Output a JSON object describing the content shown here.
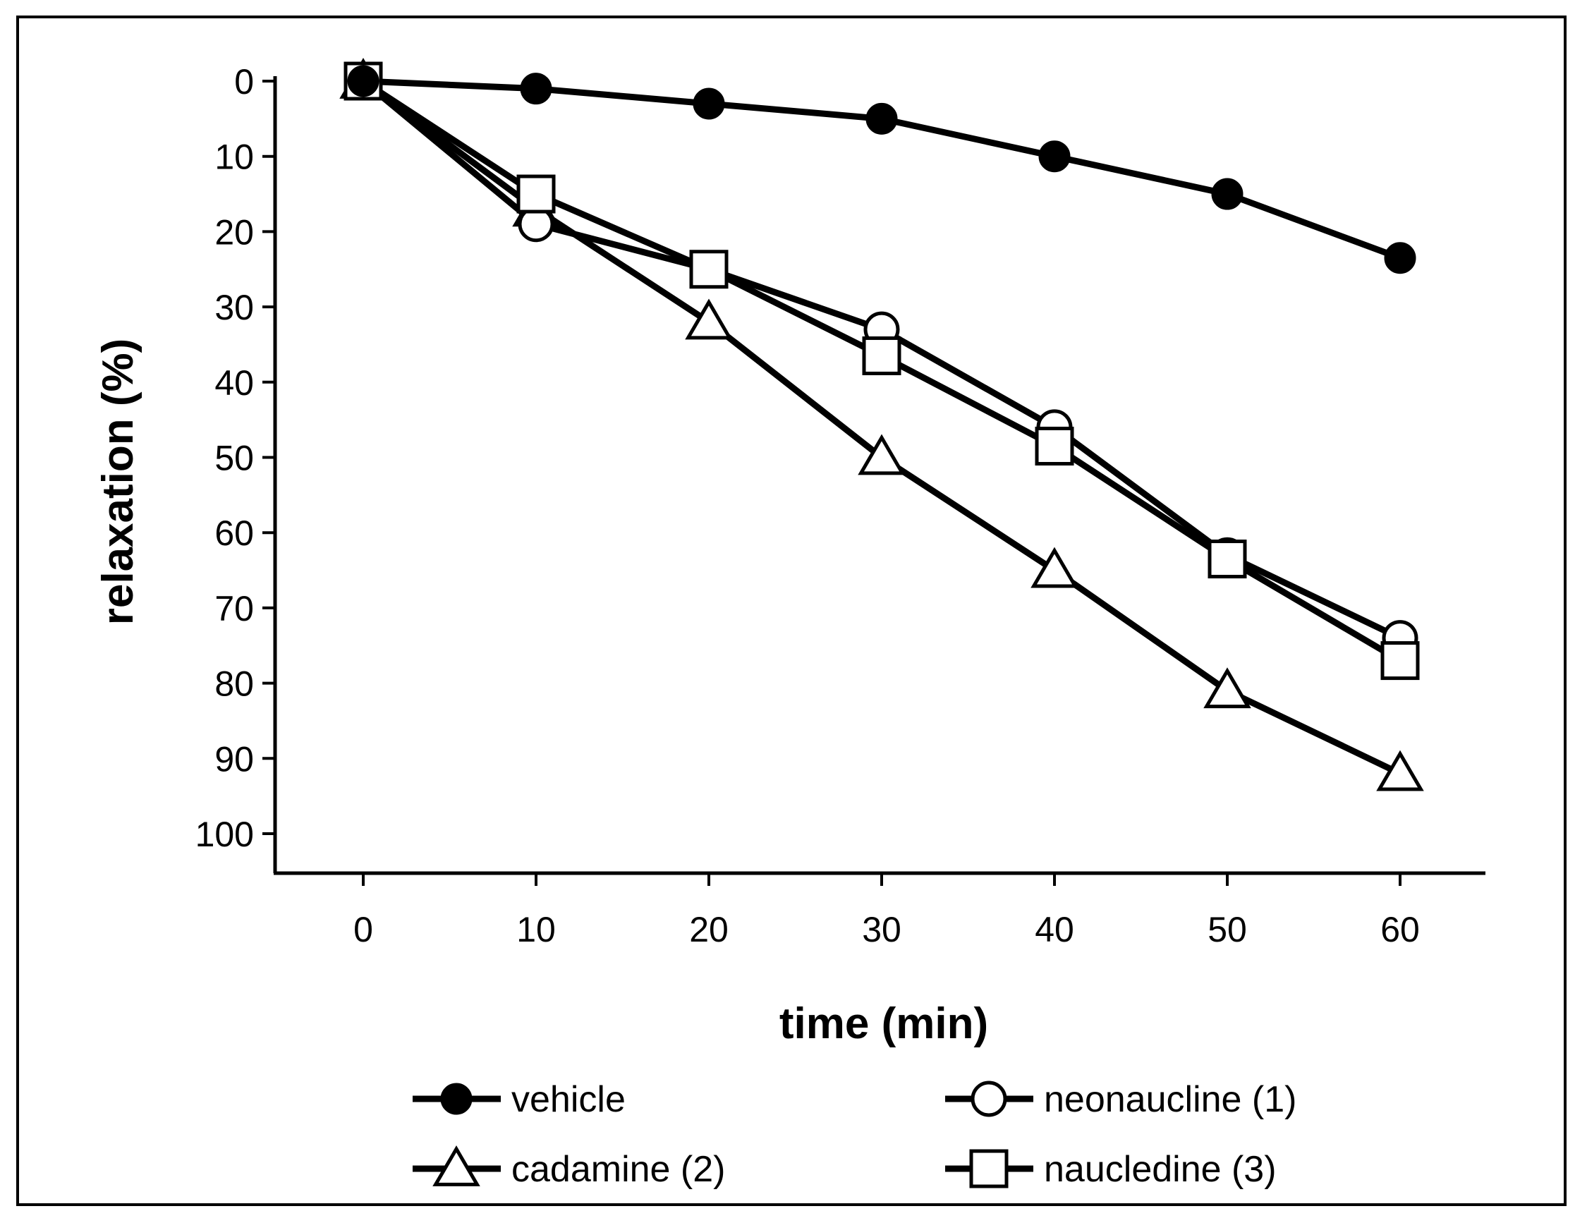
{
  "chart_data": {
    "type": "line",
    "title": "",
    "xlabel": "time (min)",
    "ylabel": "relaxation (%)",
    "x": [
      0,
      10,
      20,
      30,
      40,
      50,
      60
    ],
    "x_ticks": [
      "0",
      "10",
      "20",
      "30",
      "40",
      "50",
      "60"
    ],
    "xlim": [
      -5,
      65
    ],
    "ylim": [
      0,
      105
    ],
    "y_inverted": true,
    "y_ticks": [
      "0",
      "10",
      "20",
      "30",
      "40",
      "50",
      "60",
      "70",
      "80",
      "90",
      "100"
    ],
    "grid": false,
    "legend_position": "bottom",
    "series": [
      {
        "name": "vehicle",
        "marker": "filled-circle",
        "values": [
          0,
          1,
          3,
          5,
          10,
          15,
          23.5
        ]
      },
      {
        "name": "neonaucline (1)",
        "marker": "open-circle",
        "values": [
          0,
          19,
          25,
          33,
          46,
          63,
          74
        ]
      },
      {
        "name": "cadamine (2)",
        "marker": "open-triangle",
        "values": [
          0,
          17,
          32,
          50,
          65,
          81,
          92
        ]
      },
      {
        "name": "naucledine (3)",
        "marker": "open-square",
        "values": [
          0,
          15,
          25,
          36.5,
          48.5,
          63.5,
          77
        ]
      }
    ]
  }
}
